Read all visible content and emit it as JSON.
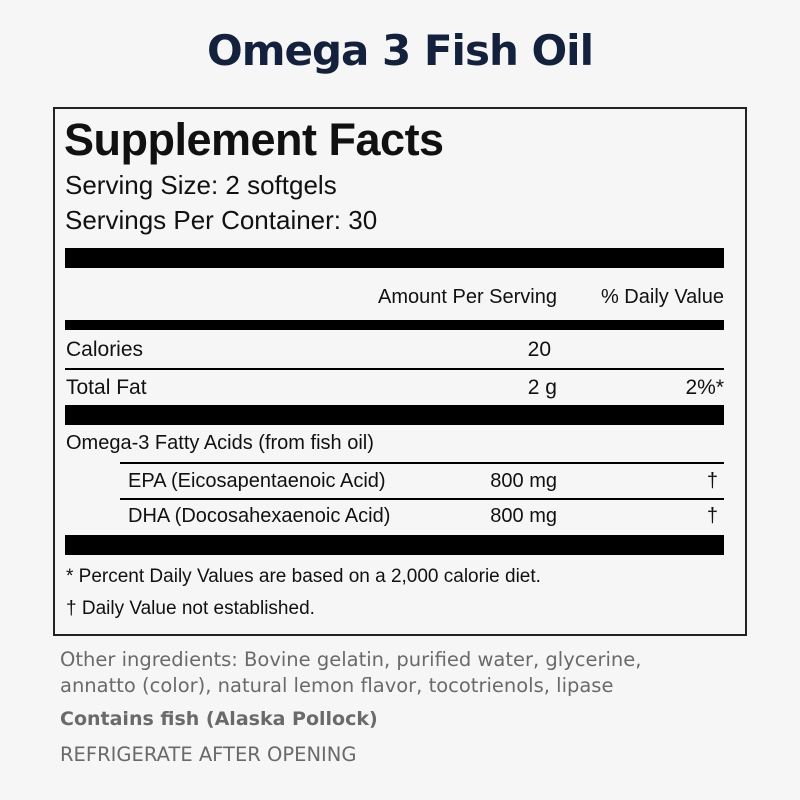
{
  "title": "Omega 3 Fish Oil",
  "facts": {
    "heading": "Supplement Facts",
    "serving_size": "Serving Size: 2 softgels",
    "servings_per_container": "Servings Per Container: 30",
    "col_amount": "Amount Per Serving",
    "col_dv": "% Daily Value",
    "rows": [
      {
        "name": "Calories",
        "amount": "20",
        "dv": ""
      },
      {
        "name": "Total Fat",
        "amount": "2 g",
        "dv": "2%*"
      },
      {
        "name": "Omega-3 Fatty Acids (from fish oil)",
        "amount": "",
        "dv": ""
      },
      {
        "name": "EPA (Eicosapentaenoic Acid)",
        "amount": "800 mg",
        "dv": "†"
      },
      {
        "name": "DHA (Docosahexaenoic Acid)",
        "amount": "800 mg",
        "dv": "†"
      }
    ],
    "footnote1": "* Percent Daily Values are based on a 2,000 calorie diet.",
    "footnote2": "† Daily Value not established."
  },
  "other_ingredients": "Other ingredients: Bovine gelatin, purified water, glycerine,",
  "other_ingredients_2": "annatto (color), natural lemon flavor, tocotrienols, lipase",
  "allergen": "Contains fish (Alaska Pollock)",
  "storage": "REFRIGERATE AFTER OPENING"
}
